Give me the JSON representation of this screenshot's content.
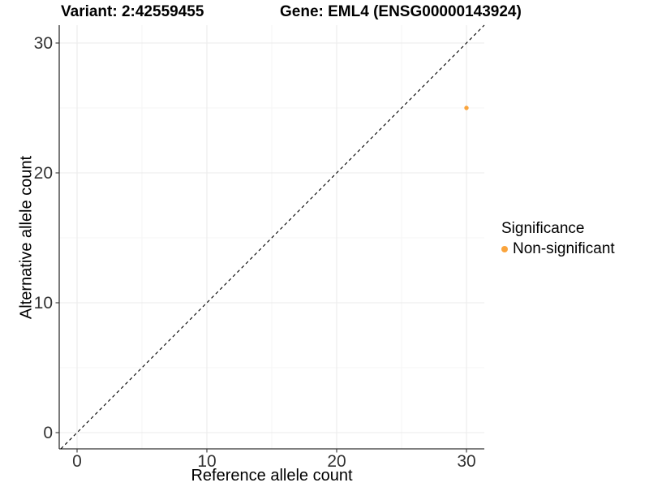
{
  "chart_data": {
    "type": "scatter",
    "title_left": "Variant: 2:42559455",
    "title_right": "Gene: EML4 (ENSG00000143924)",
    "xlabel": "Reference allele count",
    "ylabel": "Alternative allele count",
    "legend_title": "Significance",
    "legend_position": "right",
    "x_ticks": [
      0,
      10,
      20,
      30
    ],
    "y_ticks": [
      0,
      10,
      20,
      30
    ],
    "x_minor": [
      5,
      15,
      25
    ],
    "y_minor": [
      5,
      15,
      25
    ],
    "xlim": [
      -1.375,
      31.375
    ],
    "ylim": [
      -1.25,
      31.375
    ],
    "grid": true,
    "series": [
      {
        "name": "Non-significant",
        "color": "#FAA43C",
        "points": [
          {
            "x": 30,
            "y": 25
          }
        ]
      }
    ],
    "reference_line": {
      "type": "identity",
      "slope": 1,
      "intercept": 0,
      "style": "dashed",
      "color": "#000000"
    },
    "theme": {
      "background": "#ffffff",
      "grid_major": "#EBEBEB",
      "grid_minor": "#F5F5F5",
      "axis_line": "#333333",
      "tick_text": "#333333"
    }
  }
}
